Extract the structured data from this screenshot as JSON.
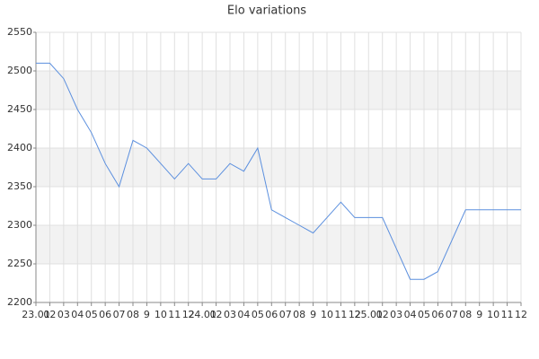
{
  "chart_data": {
    "type": "line",
    "title": "Elo variations",
    "categories": [
      "23.01",
      "02",
      "03",
      "04",
      "05",
      "06",
      "07",
      "08",
      "9",
      "10",
      "11",
      "12",
      "24.01",
      "02",
      "03",
      "04",
      "05",
      "06",
      "07",
      "08",
      "9",
      "10",
      "11",
      "12",
      "25.01",
      "02",
      "03",
      "04",
      "05",
      "06",
      "07",
      "08",
      "9",
      "10",
      "11",
      "12"
    ],
    "values": [
      2510,
      2510,
      2490,
      2450,
      2420,
      2380,
      2350,
      2410,
      2400,
      2380,
      2360,
      2380,
      2360,
      2360,
      2380,
      2370,
      2400,
      2320,
      2310,
      2300,
      2290,
      2310,
      2330,
      2310,
      2310,
      2310,
      2270,
      2230,
      2230,
      2240,
      2280,
      2320,
      2320,
      2320,
      2320,
      2320
    ],
    "color": "#5b8fde",
    "ylim": [
      2200,
      2550
    ],
    "yticks": [
      2200,
      2250,
      2300,
      2350,
      2400,
      2450,
      2500,
      2550
    ],
    "grid": true,
    "alternate_bands": true,
    "band_color": "#f2f2f2"
  }
}
